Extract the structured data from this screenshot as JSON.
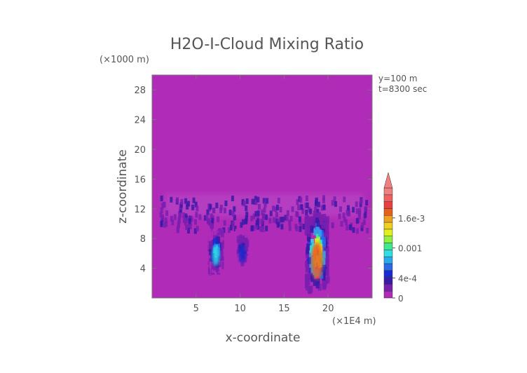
{
  "chart_data": {
    "type": "heatmap",
    "title": "H2O-I-Cloud Mixing Ratio",
    "xlabel": "x-coordinate",
    "ylabel": "z-coordinate",
    "x_unit": "(×1E4 m)",
    "y_unit": "(×1000 m)",
    "annotations": [
      "y=100 m",
      "t=8300 sec"
    ],
    "xlim": [
      0,
      25
    ],
    "ylim": [
      0,
      30
    ],
    "x_ticks": [
      5,
      10,
      15,
      20
    ],
    "y_ticks": [
      4,
      8,
      12,
      16,
      20,
      24,
      28
    ],
    "background_color": "#b02cb8",
    "colorbar": {
      "range": [
        0,
        0.0022
      ],
      "labels": [
        {
          "value": 0,
          "text": "0"
        },
        {
          "value": 0.0004,
          "text": "4e-4"
        },
        {
          "value": 0.001,
          "text": "0.001"
        },
        {
          "value": 0.0016,
          "text": "1.6e-3"
        }
      ],
      "colors": [
        "#b02cb8",
        "#7a1fb0",
        "#3a1aa8",
        "#1a2ad0",
        "#2a6ae8",
        "#2aa8f0",
        "#30e0e0",
        "#40e890",
        "#90f040",
        "#e0f020",
        "#f0d020",
        "#f0a020",
        "#e86020",
        "#e84040",
        "#f06060",
        "#f08080"
      ],
      "extend": "max"
    },
    "cloud_regions": [
      {
        "name": "anvil-layer",
        "x_range": [
          1,
          24.5
        ],
        "z_range": [
          9,
          13.5
        ],
        "peak": 0.0003
      },
      {
        "name": "left-core",
        "x_range": [
          6.5,
          8
        ],
        "z_range": [
          3.5,
          9
        ],
        "peak": 0.0011
      },
      {
        "name": "middle-core",
        "x_range": [
          9.5,
          11
        ],
        "z_range": [
          4,
          9
        ],
        "peak": 0.0005
      },
      {
        "name": "right-core",
        "x_range": [
          17.5,
          20
        ],
        "z_range": [
          1,
          11
        ],
        "peak": 0.0021
      }
    ]
  }
}
